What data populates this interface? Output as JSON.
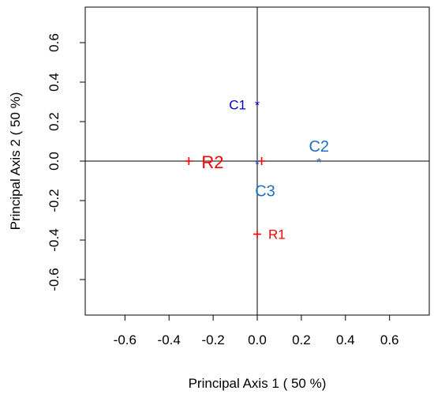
{
  "chart_data": {
    "type": "scatter",
    "xlabel": "Principal Axis 1 ( 50 %)",
    "ylabel": "Principal Axis 2 ( 50 %)",
    "xlim": [
      -0.78,
      0.78
    ],
    "ylim": [
      -0.78,
      0.78
    ],
    "x_ticks": [
      -0.6,
      -0.4,
      -0.2,
      0.0,
      0.2,
      0.4,
      0.6
    ],
    "x_tick_labels": [
      "-0.6",
      "-0.4",
      "-0.2",
      "0.0",
      "0.2",
      "0.4",
      "0.6"
    ],
    "y_ticks": [
      -0.6,
      -0.4,
      -0.2,
      0.0,
      0.2,
      0.4,
      0.6
    ],
    "y_tick_labels": [
      "-0.6",
      "-0.4",
      "-0.2",
      "0.0",
      "0.2",
      "0.4",
      "0.6"
    ],
    "grid": false,
    "reference_lines": {
      "x": 0,
      "y": 0
    },
    "series": [
      {
        "color": "#ff0000",
        "marker": "+",
        "points": [
          {
            "label": "R1",
            "x": 0.0,
            "y": -0.37
          },
          {
            "label": "R2",
            "x": -0.31,
            "y": 0.0
          },
          {
            "label": "",
            "x": 0.02,
            "y": 0.0
          }
        ]
      },
      {
        "color": "#0000cc",
        "marker": "*",
        "points": [
          {
            "label": "C1",
            "x": 0.0,
            "y": 0.29
          }
        ]
      },
      {
        "color": "#1f6fbf",
        "marker": "*",
        "points": [
          {
            "label": "C2",
            "x": 0.28,
            "y": 0.0
          },
          {
            "label": "C3",
            "x": 0.0,
            "y": -0.01
          }
        ]
      }
    ]
  }
}
